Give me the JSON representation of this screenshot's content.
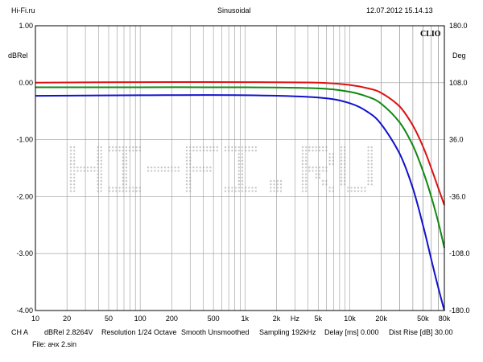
{
  "header": {
    "site": "Hi-Fi.ru",
    "signal": "Sinusoidal",
    "datetime": "12.07.2012 15.14.13"
  },
  "chart_data": {
    "type": "line",
    "brand": "CLIO",
    "watermark": "HI-FI.RU",
    "left_axis": {
      "label": "dBRel",
      "range": [
        -4,
        1
      ],
      "ticks": [
        1,
        0,
        -1,
        -2,
        -3,
        -4
      ],
      "tick_labels": [
        "1.00",
        "0.00",
        "-1.00",
        "-2.00",
        "-3.00",
        "-4.00"
      ]
    },
    "right_axis": {
      "label": "Deg",
      "range": [
        -180,
        180
      ],
      "ticks": [
        180,
        108,
        36,
        -36,
        -108,
        -180
      ],
      "tick_labels": [
        "180.0",
        "108.0",
        "36.0",
        "-36.0",
        "-108.0",
        "-180.0"
      ]
    },
    "x_axis": {
      "scale": "log",
      "range": [
        10,
        80000
      ],
      "unit_label": "Hz",
      "ticks": [
        10,
        20,
        50,
        100,
        200,
        500,
        1000,
        2000,
        5000,
        10000,
        20000,
        50000,
        80000
      ],
      "tick_labels": [
        "10",
        "20",
        "50",
        "100",
        "200",
        "500",
        "1k",
        "2k",
        "5k",
        "10k",
        "20k",
        "50k",
        "80k"
      ]
    },
    "grid": true,
    "series": [
      {
        "color": "#dd1111",
        "x": [
          10,
          100,
          1000,
          5000,
          10000,
          15000,
          20000,
          30000,
          40000,
          50000,
          60000,
          70000,
          80000
        ],
        "y": [
          0.0,
          0.01,
          0.01,
          0.0,
          -0.04,
          -0.1,
          -0.18,
          -0.42,
          -0.75,
          -1.12,
          -1.5,
          -1.85,
          -2.15
        ]
      },
      {
        "color": "#118811",
        "x": [
          10,
          100,
          1000,
          5000,
          10000,
          15000,
          20000,
          30000,
          40000,
          50000,
          60000,
          70000,
          80000
        ],
        "y": [
          -0.08,
          -0.08,
          -0.08,
          -0.1,
          -0.16,
          -0.25,
          -0.37,
          -0.7,
          -1.1,
          -1.55,
          -2.0,
          -2.45,
          -2.9
        ]
      },
      {
        "color": "#1111cc",
        "x": [
          10,
          100,
          1000,
          5000,
          10000,
          15000,
          20000,
          30000,
          40000,
          50000,
          60000,
          70000,
          80000
        ],
        "y": [
          -0.23,
          -0.22,
          -0.22,
          -0.26,
          -0.36,
          -0.52,
          -0.73,
          -1.25,
          -1.85,
          -2.5,
          -3.1,
          -3.6,
          -4.0
        ]
      }
    ]
  },
  "footer": {
    "channel": "CH A",
    "units": "dBRel 2.8264V",
    "resolution": "Resolution 1/24 Octave",
    "smooth": "Smooth Unsmoothed",
    "sampling": "Sampling 192kHz",
    "delay": "Delay [ms] 0.000",
    "dist_rise": "Dist Rise [dB] 30.00",
    "file": "File: ачх 2.sin"
  }
}
